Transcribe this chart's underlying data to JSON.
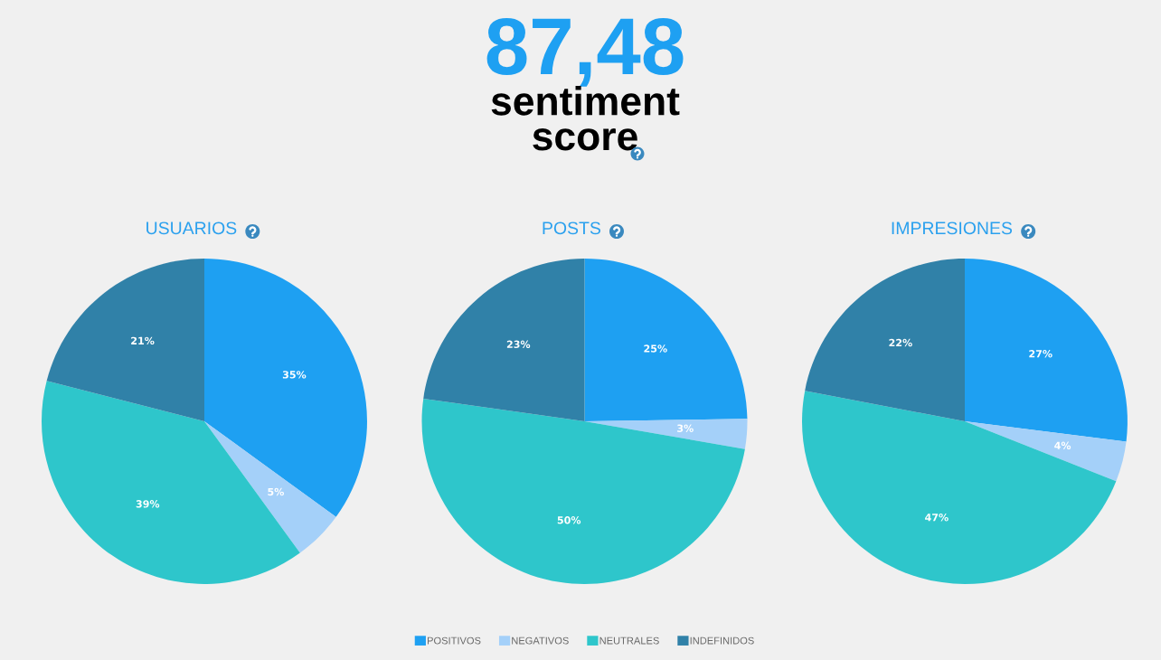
{
  "chart_data": [
    {
      "type": "other",
      "title": "87,48",
      "subtitle": "sentiment score"
    },
    {
      "type": "pie",
      "title": "USUARIOS",
      "categories": [
        "POSITIVOS",
        "NEGATIVOS",
        "NEUTRALES",
        "INDEFINIDOS"
      ],
      "values": [
        35,
        5,
        39,
        21
      ],
      "value_labels": [
        "35%",
        "5%",
        "39%",
        "21%"
      ],
      "colors": [
        "#1ea0f2",
        "#a4d0f9",
        "#2ec6cb",
        "#3081a8"
      ],
      "legend": "bottom"
    },
    {
      "type": "pie",
      "title": "POSTS",
      "categories": [
        null,
        null,
        null,
        null
      ],
      "values": [
        25,
        3,
        50,
        23
      ],
      "value_labels": [
        "25%",
        "3%",
        "50%",
        "23%"
      ],
      "colors": [
        "#1ea0f2",
        "#a4d0f9",
        "#2ec6cb",
        "#3081a8"
      ]
    },
    {
      "type": "pie",
      "title": "IMPRESIONES",
      "categories": [
        null,
        null,
        null,
        null
      ],
      "values": [
        27,
        4,
        47,
        22
      ],
      "value_labels": [
        "27%",
        "4%",
        "47%",
        "22%"
      ],
      "colors": [
        "#1ea0f2",
        "#a4d0f9",
        "#2ec6cb",
        "#3081a8"
      ]
    }
  ]
}
